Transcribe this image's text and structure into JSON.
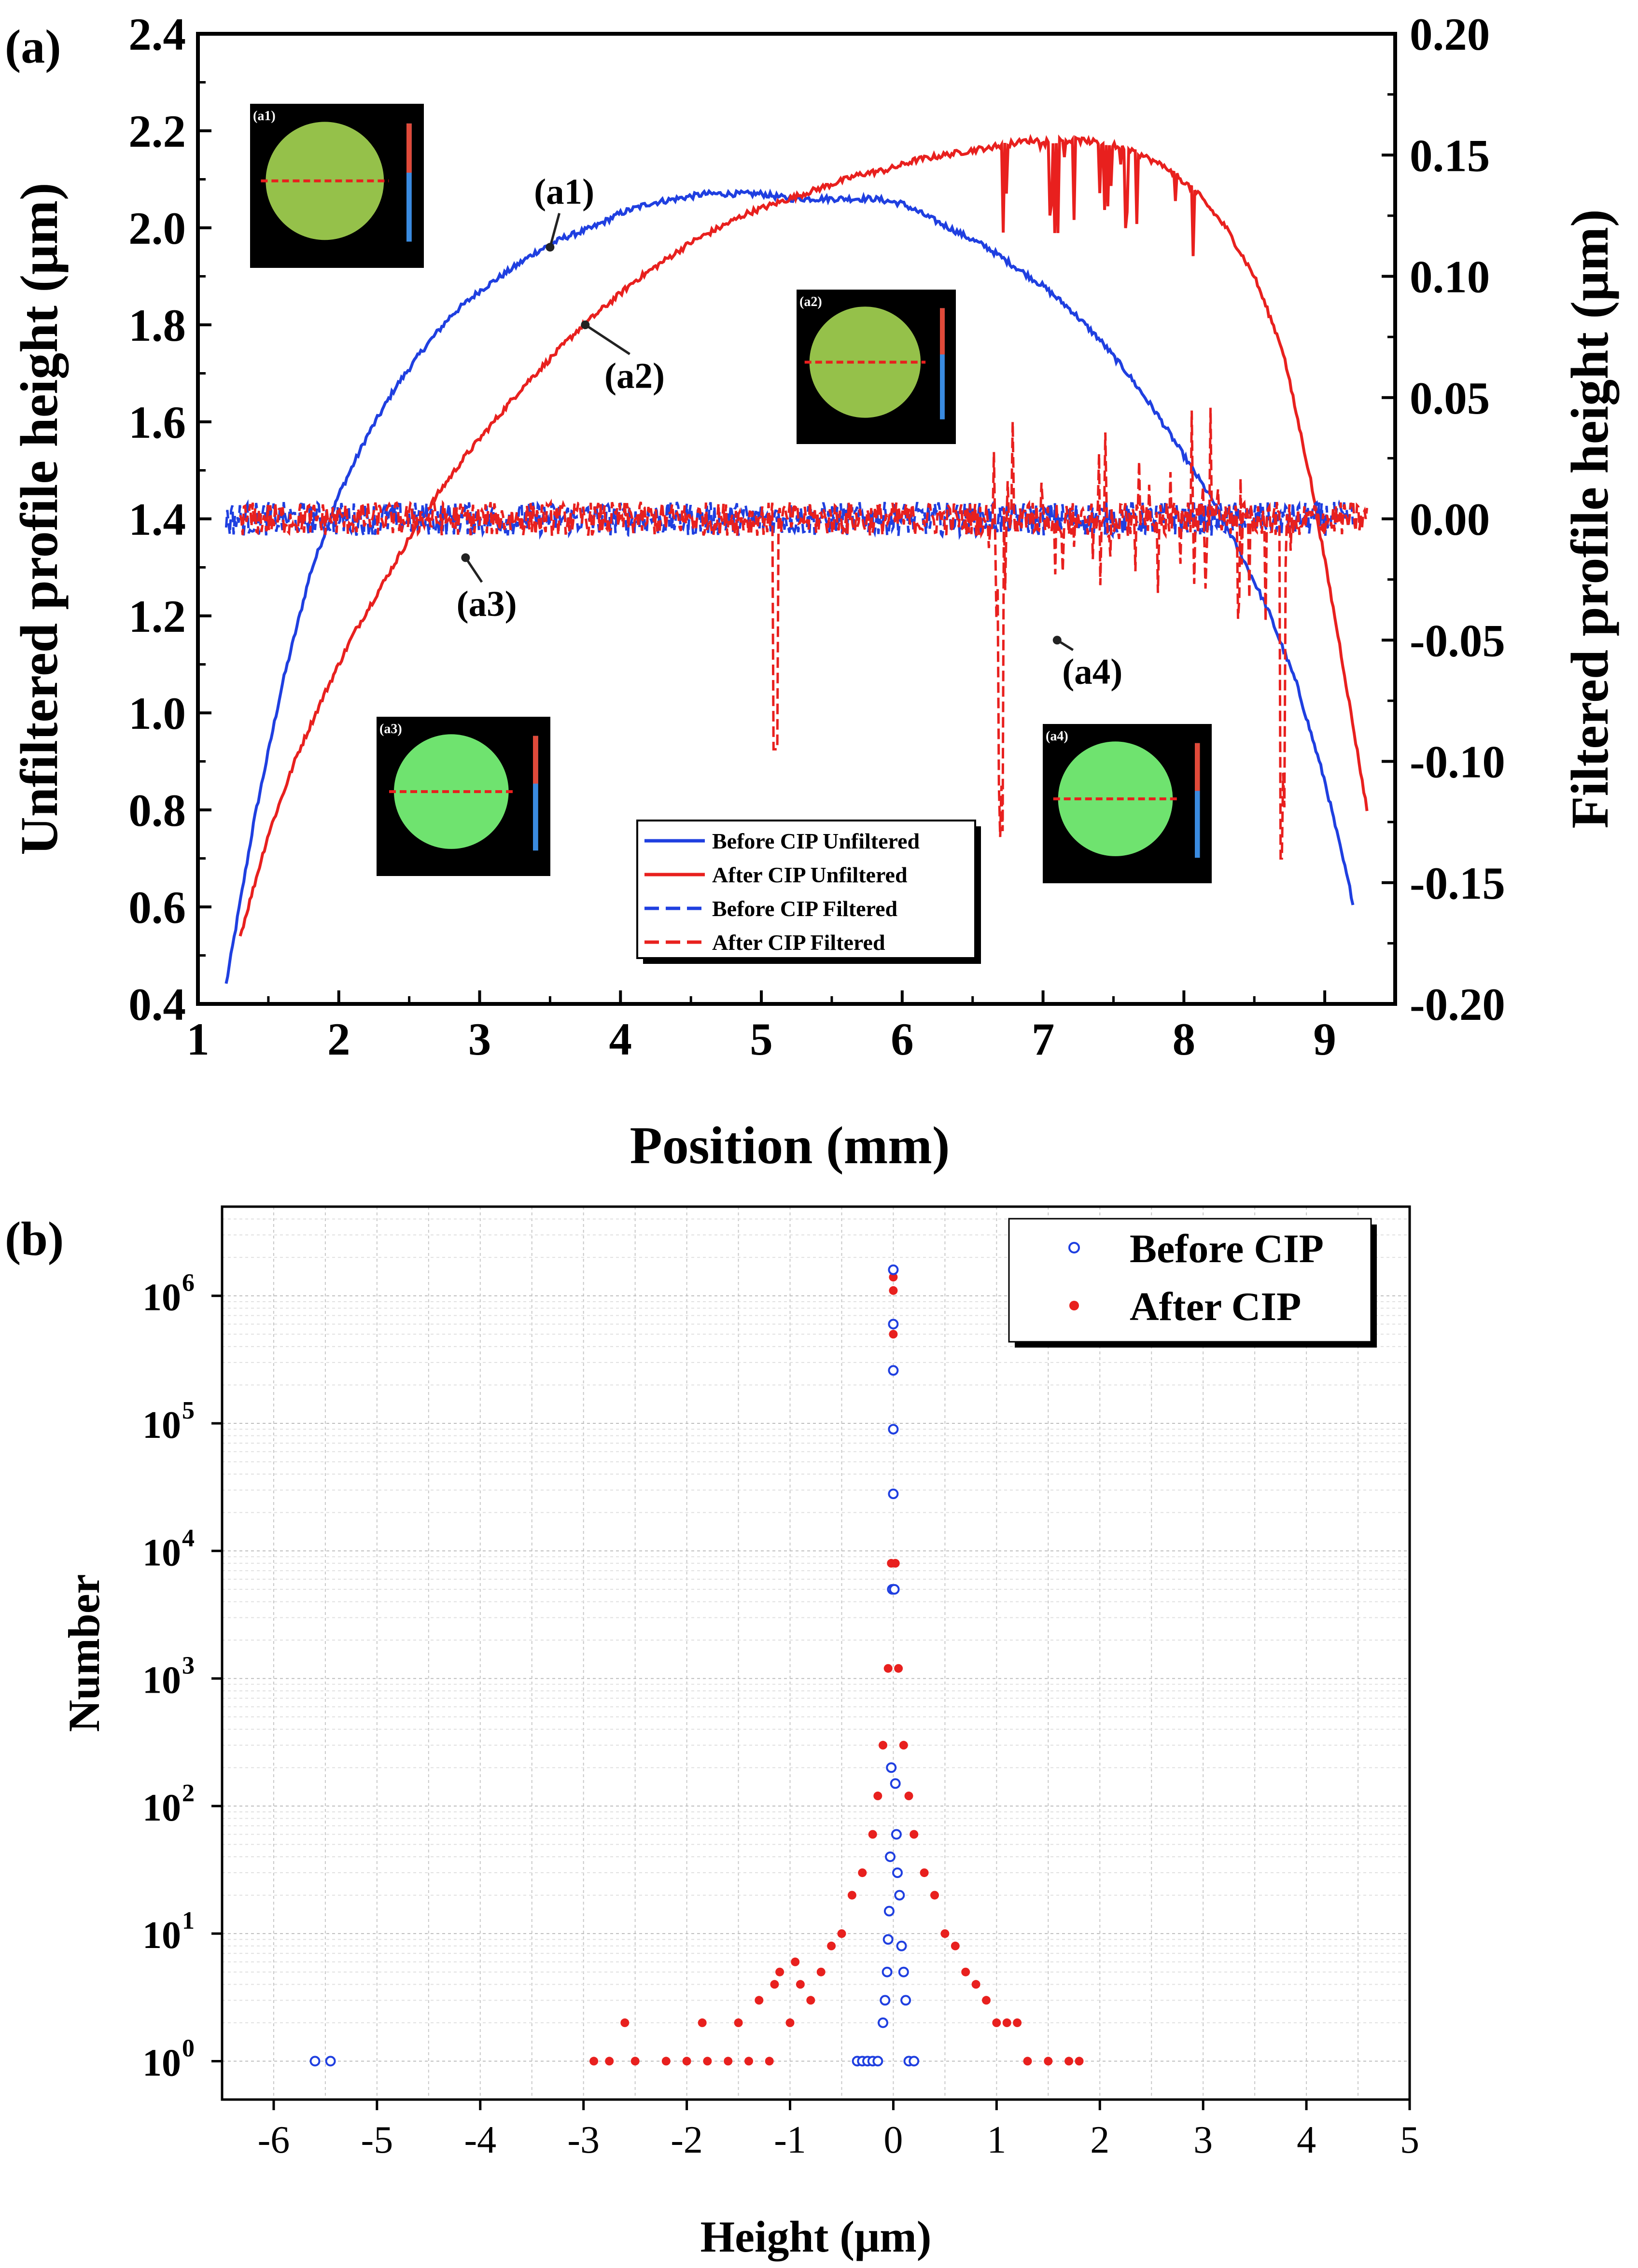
{
  "chart_data": [
    {
      "panel_label": "(a)",
      "type": "line",
      "xlabel": "Position (mm)",
      "ylabel": "Unfiltered profile height (μm)",
      "y2label": "Filtered profile height (μm)",
      "xlim": [
        1,
        9.5
      ],
      "ylim": [
        0.4,
        2.4
      ],
      "y2lim": [
        -0.2,
        0.2
      ],
      "xticks": [
        "1",
        "2",
        "3",
        "4",
        "5",
        "6",
        "7",
        "8",
        "9"
      ],
      "yticks": [
        "0.4",
        "0.6",
        "0.8",
        "1.0",
        "1.2",
        "1.4",
        "1.6",
        "1.8",
        "2.0",
        "2.2",
        "2.4"
      ],
      "y2ticks": [
        "-0.20",
        "-0.15",
        "-0.10",
        "-0.05",
        "0.00",
        "0.05",
        "0.10",
        "0.15",
        "0.20"
      ],
      "grid": false,
      "legend_placement": "bottom-center",
      "legend": [
        "Before CIP Unfiltered",
        "After CIP Unfiltered",
        "Before CIP Filtered",
        "After CIP Filtered"
      ],
      "series": [
        {
          "name": "Before CIP Unfiltered",
          "axis": "left",
          "color": "#1f3fe0",
          "style": "solid",
          "x": [
            1.2,
            1.4,
            1.6,
            1.8,
            2.0,
            2.2,
            2.4,
            2.6,
            2.8,
            3.0,
            3.2,
            3.4,
            3.6,
            3.8,
            4.0,
            4.2,
            4.4,
            4.6,
            4.8,
            5.0,
            5.2,
            5.4,
            5.6,
            5.8,
            6.0,
            6.2,
            6.4,
            6.6,
            6.8,
            7.0,
            7.2,
            7.4,
            7.6,
            7.8,
            8.0,
            8.2,
            8.4,
            8.6,
            8.8,
            9.0,
            9.2
          ],
          "y": [
            0.44,
            0.78,
            1.06,
            1.29,
            1.45,
            1.57,
            1.67,
            1.75,
            1.82,
            1.87,
            1.91,
            1.95,
            1.98,
            2.0,
            2.03,
            2.05,
            2.06,
            2.07,
            2.07,
            2.07,
            2.06,
            2.06,
            2.06,
            2.06,
            2.05,
            2.02,
            1.99,
            1.96,
            1.92,
            1.88,
            1.83,
            1.77,
            1.7,
            1.62,
            1.53,
            1.44,
            1.33,
            1.21,
            1.06,
            0.86,
            0.61
          ]
        },
        {
          "name": "After CIP Unfiltered",
          "axis": "left",
          "color": "#e8201e",
          "style": "solid",
          "x": [
            1.3,
            1.5,
            1.7,
            1.9,
            2.1,
            2.3,
            2.5,
            2.7,
            2.9,
            3.1,
            3.3,
            3.5,
            3.7,
            3.9,
            4.1,
            4.3,
            4.5,
            4.7,
            4.9,
            5.1,
            5.3,
            5.5,
            5.7,
            5.9,
            6.1,
            6.3,
            6.5,
            6.7,
            6.9,
            7.1,
            7.3,
            7.5,
            7.7,
            7.9,
            8.1,
            8.3,
            8.5,
            8.7,
            8.9,
            9.1,
            9.3
          ],
          "y": [
            0.54,
            0.75,
            0.91,
            1.04,
            1.16,
            1.26,
            1.36,
            1.45,
            1.53,
            1.6,
            1.67,
            1.73,
            1.79,
            1.84,
            1.89,
            1.93,
            1.97,
            2.0,
            2.03,
            2.05,
            2.07,
            2.09,
            2.11,
            2.12,
            2.14,
            2.15,
            2.16,
            2.17,
            2.18,
            2.18,
            2.18,
            2.17,
            2.15,
            2.12,
            2.07,
            2.0,
            1.9,
            1.75,
            1.48,
            1.15,
            0.8
          ]
        },
        {
          "name": "Before CIP Filtered",
          "axis": "right",
          "color": "#1f3fe0",
          "style": "dashed",
          "x": [
            1.2,
            9.2
          ],
          "y": [
            0.0,
            0.0
          ]
        },
        {
          "name": "After CIP Filtered",
          "axis": "right",
          "color": "#e8201e",
          "style": "dashed",
          "x": [
            1.3,
            9.3
          ],
          "y": [
            0.0,
            0.0
          ]
        }
      ],
      "annotations": [
        {
          "text": "(a1)",
          "x": 3.6,
          "y": 2.05
        },
        {
          "text": "(a2)",
          "x": 4.1,
          "y": 1.67
        },
        {
          "text": "(a3)",
          "x": 3.05,
          "y": 1.2
        },
        {
          "text": "(a4)",
          "x": 7.35,
          "y": 1.06
        }
      ],
      "insets": [
        {
          "label": "(a1)",
          "fill": "#95c14a"
        },
        {
          "label": "(a2)",
          "fill": "#95c14a"
        },
        {
          "label": "(a3)",
          "fill": "#6fe36f"
        },
        {
          "label": "(a4)",
          "fill": "#6fe36f"
        }
      ]
    },
    {
      "panel_label": "(b)",
      "type": "scatter",
      "xlabel": "Height (μm)",
      "ylabel": "Number",
      "xlim": [
        -6.5,
        5
      ],
      "ylim": [
        0.5,
        5000000
      ],
      "log_y": true,
      "xticks": [
        "-6",
        "-5",
        "-4",
        "-3",
        "-2",
        "-1",
        "0",
        "1",
        "2",
        "3",
        "4",
        "5"
      ],
      "yticks": [
        "10",
        "10",
        "10",
        "10",
        "10",
        "10",
        "10"
      ],
      "ytick_exponents": [
        "0",
        "1",
        "2",
        "3",
        "4",
        "5",
        "6"
      ],
      "grid": true,
      "legend_placement": "top-right",
      "legend": [
        "Before CIP",
        "After CIP"
      ],
      "series": [
        {
          "name": "Before CIP",
          "color": "#1f3fe0",
          "marker": "hollow-circle",
          "points": [
            [
              -5.6,
              1
            ],
            [
              -5.45,
              1
            ],
            [
              -0.35,
              1
            ],
            [
              -0.3,
              1
            ],
            [
              -0.25,
              1
            ],
            [
              -0.2,
              1
            ],
            [
              -0.15,
              1
            ],
            [
              -0.1,
              2
            ],
            [
              -0.08,
              3
            ],
            [
              -0.06,
              5
            ],
            [
              -0.05,
              9
            ],
            [
              -0.04,
              15
            ],
            [
              -0.03,
              40
            ],
            [
              -0.02,
              200
            ],
            [
              -0.01,
              5000
            ],
            [
              0.0,
              1600000
            ],
            [
              0.0,
              600000
            ],
            [
              0.0,
              260000
            ],
            [
              0.0,
              90000
            ],
            [
              0.0,
              28000
            ],
            [
              0.01,
              5000
            ],
            [
              0.02,
              150
            ],
            [
              0.03,
              60
            ],
            [
              0.04,
              30
            ],
            [
              0.06,
              20
            ],
            [
              0.08,
              8
            ],
            [
              0.1,
              5
            ],
            [
              0.12,
              3
            ],
            [
              0.15,
              1
            ],
            [
              0.2,
              1
            ]
          ]
        },
        {
          "name": "After CIP",
          "color": "#e8201e",
          "marker": "filled-circle",
          "points": [
            [
              -2.9,
              1
            ],
            [
              -2.75,
              1
            ],
            [
              -2.6,
              2
            ],
            [
              -2.5,
              1
            ],
            [
              -2.2,
              1
            ],
            [
              -2.0,
              1
            ],
            [
              -1.85,
              2
            ],
            [
              -1.8,
              1
            ],
            [
              -1.6,
              1
            ],
            [
              -1.5,
              2
            ],
            [
              -1.4,
              1
            ],
            [
              -1.3,
              3
            ],
            [
              -1.2,
              1
            ],
            [
              -1.15,
              4
            ],
            [
              -1.1,
              5
            ],
            [
              -1.0,
              2
            ],
            [
              -0.95,
              6
            ],
            [
              -0.9,
              4
            ],
            [
              -0.8,
              3
            ],
            [
              -0.7,
              5
            ],
            [
              -0.6,
              8
            ],
            [
              -0.5,
              10
            ],
            [
              -0.4,
              20
            ],
            [
              -0.3,
              30
            ],
            [
              -0.2,
              60
            ],
            [
              -0.15,
              120
            ],
            [
              -0.1,
              300
            ],
            [
              -0.05,
              1200
            ],
            [
              -0.02,
              8000
            ],
            [
              0.0,
              1400000
            ],
            [
              0.0,
              1100000
            ],
            [
              0.0,
              500000
            ],
            [
              0.02,
              8000
            ],
            [
              0.05,
              1200
            ],
            [
              0.1,
              300
            ],
            [
              0.15,
              120
            ],
            [
              0.2,
              60
            ],
            [
              0.3,
              30
            ],
            [
              0.4,
              20
            ],
            [
              0.5,
              10
            ],
            [
              0.6,
              8
            ],
            [
              0.7,
              5
            ],
            [
              0.8,
              4
            ],
            [
              0.9,
              3
            ],
            [
              1.0,
              2
            ],
            [
              1.1,
              2
            ],
            [
              1.2,
              2
            ],
            [
              1.3,
              1
            ],
            [
              1.5,
              1
            ],
            [
              1.7,
              1
            ],
            [
              1.8,
              1
            ]
          ]
        }
      ]
    }
  ]
}
